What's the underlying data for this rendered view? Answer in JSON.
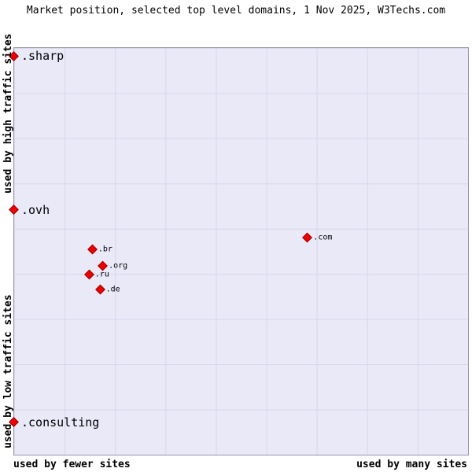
{
  "title": "Market position, selected top level domains, 1 Nov 2025, W3Techs.com",
  "axes": {
    "y_top": "used by high traffic sites",
    "y_bottom": "used by low traffic sites",
    "x_left": "used by fewer sites",
    "x_right": "used by many sites"
  },
  "colors": {
    "plot_background": "#e9e9f8",
    "grid_line": "#d7d7ec",
    "plot_border": "#9898ac",
    "marker_fill": "#ee0000",
    "marker_border": "#990000",
    "text": "#000000"
  },
  "chart_data": {
    "type": "scatter",
    "title": "Market position, selected top level domains, 1 Nov 2025, W3Techs.com",
    "x_axis": {
      "scale": "qualitative",
      "label_left": "used by fewer sites",
      "label_right": "used by many sites",
      "range_pct": [
        0,
        100
      ]
    },
    "y_axis": {
      "scale": "qualitative",
      "label_top": "used by high traffic sites",
      "label_bottom": "used by low traffic sites",
      "range_pct": [
        0,
        100
      ]
    },
    "grid": {
      "columns": 9,
      "rows": 9,
      "visible": true
    },
    "legend": "none",
    "points": [
      {
        "label": ".sharp",
        "x_pct": 0.0,
        "y_pct": 2.0,
        "size": "large"
      },
      {
        "label": ".ovh",
        "x_pct": 0.0,
        "y_pct": 39.8,
        "size": "large"
      },
      {
        "label": ".consulting",
        "x_pct": 0.0,
        "y_pct": 92.0,
        "size": "large"
      },
      {
        "label": ".com",
        "x_pct": 64.7,
        "y_pct": 46.6,
        "size": "small"
      },
      {
        "label": ".br",
        "x_pct": 17.3,
        "y_pct": 49.5,
        "size": "small"
      },
      {
        "label": ".org",
        "x_pct": 19.6,
        "y_pct": 53.5,
        "size": "small"
      },
      {
        "label": ".ru",
        "x_pct": 16.6,
        "y_pct": 55.7,
        "size": "small"
      },
      {
        "label": ".de",
        "x_pct": 19.0,
        "y_pct": 59.4,
        "size": "small"
      }
    ]
  }
}
